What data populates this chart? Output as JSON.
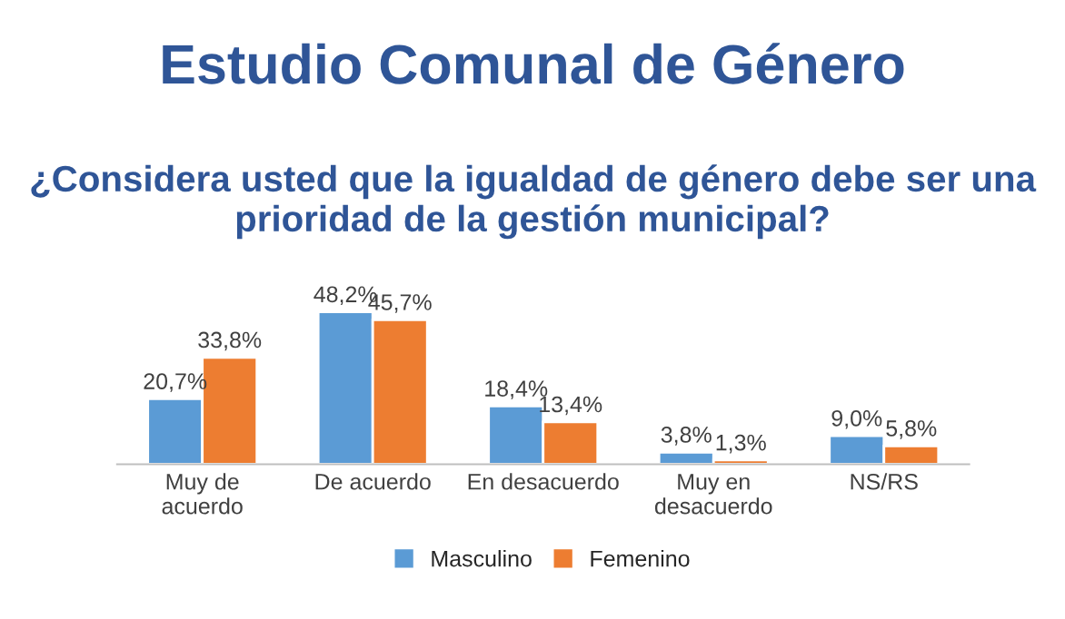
{
  "chart_data": {
    "type": "bar",
    "title": "Estudio Comunal de Género",
    "subtitle": "¿Considera usted que la igualdad de género debe ser una prioridad de la gestión municipal?",
    "categories": [
      "Muy de\nacuerdo",
      "De acuerdo",
      "En desacuerdo",
      "Muy en\ndesacuerdo",
      "NS/RS"
    ],
    "series": [
      {
        "name": "Masculino",
        "color": "#5b9bd5",
        "values": [
          20.7,
          48.2,
          18.4,
          3.8,
          9.0
        ],
        "value_labels": [
          "20,7%",
          "48,2%",
          "18,4%",
          "3,8%",
          "9,0%"
        ]
      },
      {
        "name": "Femenino",
        "color": "#ed7d31",
        "values": [
          33.8,
          45.7,
          13.4,
          1.3,
          5.8
        ],
        "value_labels": [
          "33,8%",
          "45,7%",
          "13,4%",
          "1,3%",
          "5,8%"
        ]
      }
    ],
    "legend": "bottom",
    "grid": false
  }
}
